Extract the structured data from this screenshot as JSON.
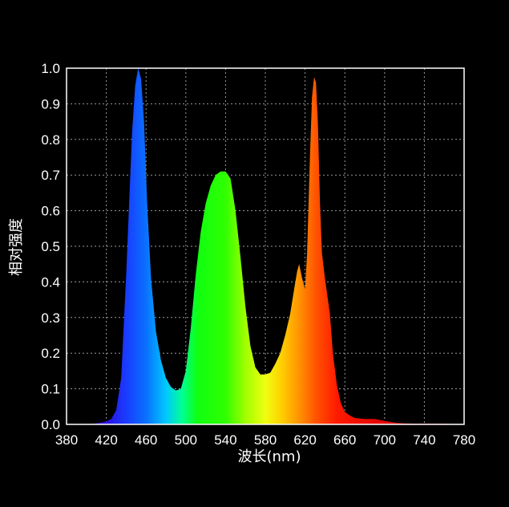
{
  "chart_data": {
    "type": "area",
    "title": "",
    "xlabel": "波长(nm)",
    "ylabel": "相对强度",
    "xlim": [
      380,
      780
    ],
    "ylim": [
      0,
      1.0
    ],
    "grid": true,
    "x_ticks": [
      380,
      420,
      460,
      500,
      540,
      580,
      620,
      660,
      700,
      740,
      780
    ],
    "y_ticks": [
      "0.0",
      "0.1",
      "0.2",
      "0.3",
      "0.4",
      "0.5",
      "0.6",
      "0.7",
      "0.8",
      "0.9",
      "1.0"
    ],
    "fill": "wavelength-colored spectrum",
    "series": [
      {
        "x": [
          380,
          400,
          410,
          420,
          425,
          430,
          435,
          440,
          443,
          446,
          449,
          452,
          455,
          458,
          461,
          465,
          470,
          475,
          480,
          485,
          490,
          495,
          500,
          505,
          510,
          515,
          520,
          525,
          530,
          535,
          540,
          545,
          550,
          555,
          560,
          565,
          570,
          575,
          580,
          585,
          590,
          595,
          600,
          605,
          609,
          612,
          614,
          617,
          620,
          622,
          625,
          627,
          629,
          631,
          633,
          635,
          637,
          640,
          645,
          648,
          652,
          656,
          660,
          665,
          670,
          680,
          690,
          700,
          710,
          720,
          730,
          740,
          750,
          760,
          770,
          780
        ],
        "y": [
          0.0,
          0.0,
          0.003,
          0.008,
          0.015,
          0.04,
          0.13,
          0.42,
          0.62,
          0.82,
          0.95,
          1.0,
          0.97,
          0.85,
          0.63,
          0.41,
          0.26,
          0.18,
          0.13,
          0.105,
          0.095,
          0.1,
          0.15,
          0.27,
          0.42,
          0.54,
          0.62,
          0.67,
          0.7,
          0.71,
          0.71,
          0.69,
          0.6,
          0.47,
          0.33,
          0.22,
          0.16,
          0.14,
          0.14,
          0.145,
          0.17,
          0.2,
          0.25,
          0.31,
          0.38,
          0.43,
          0.45,
          0.41,
          0.38,
          0.48,
          0.76,
          0.92,
          0.975,
          0.96,
          0.84,
          0.62,
          0.48,
          0.41,
          0.31,
          0.2,
          0.11,
          0.06,
          0.035,
          0.025,
          0.018,
          0.015,
          0.015,
          0.01,
          0.005,
          0.003,
          0.002,
          0.002,
          0.002,
          0.002,
          0.001,
          0.0
        ]
      }
    ]
  }
}
